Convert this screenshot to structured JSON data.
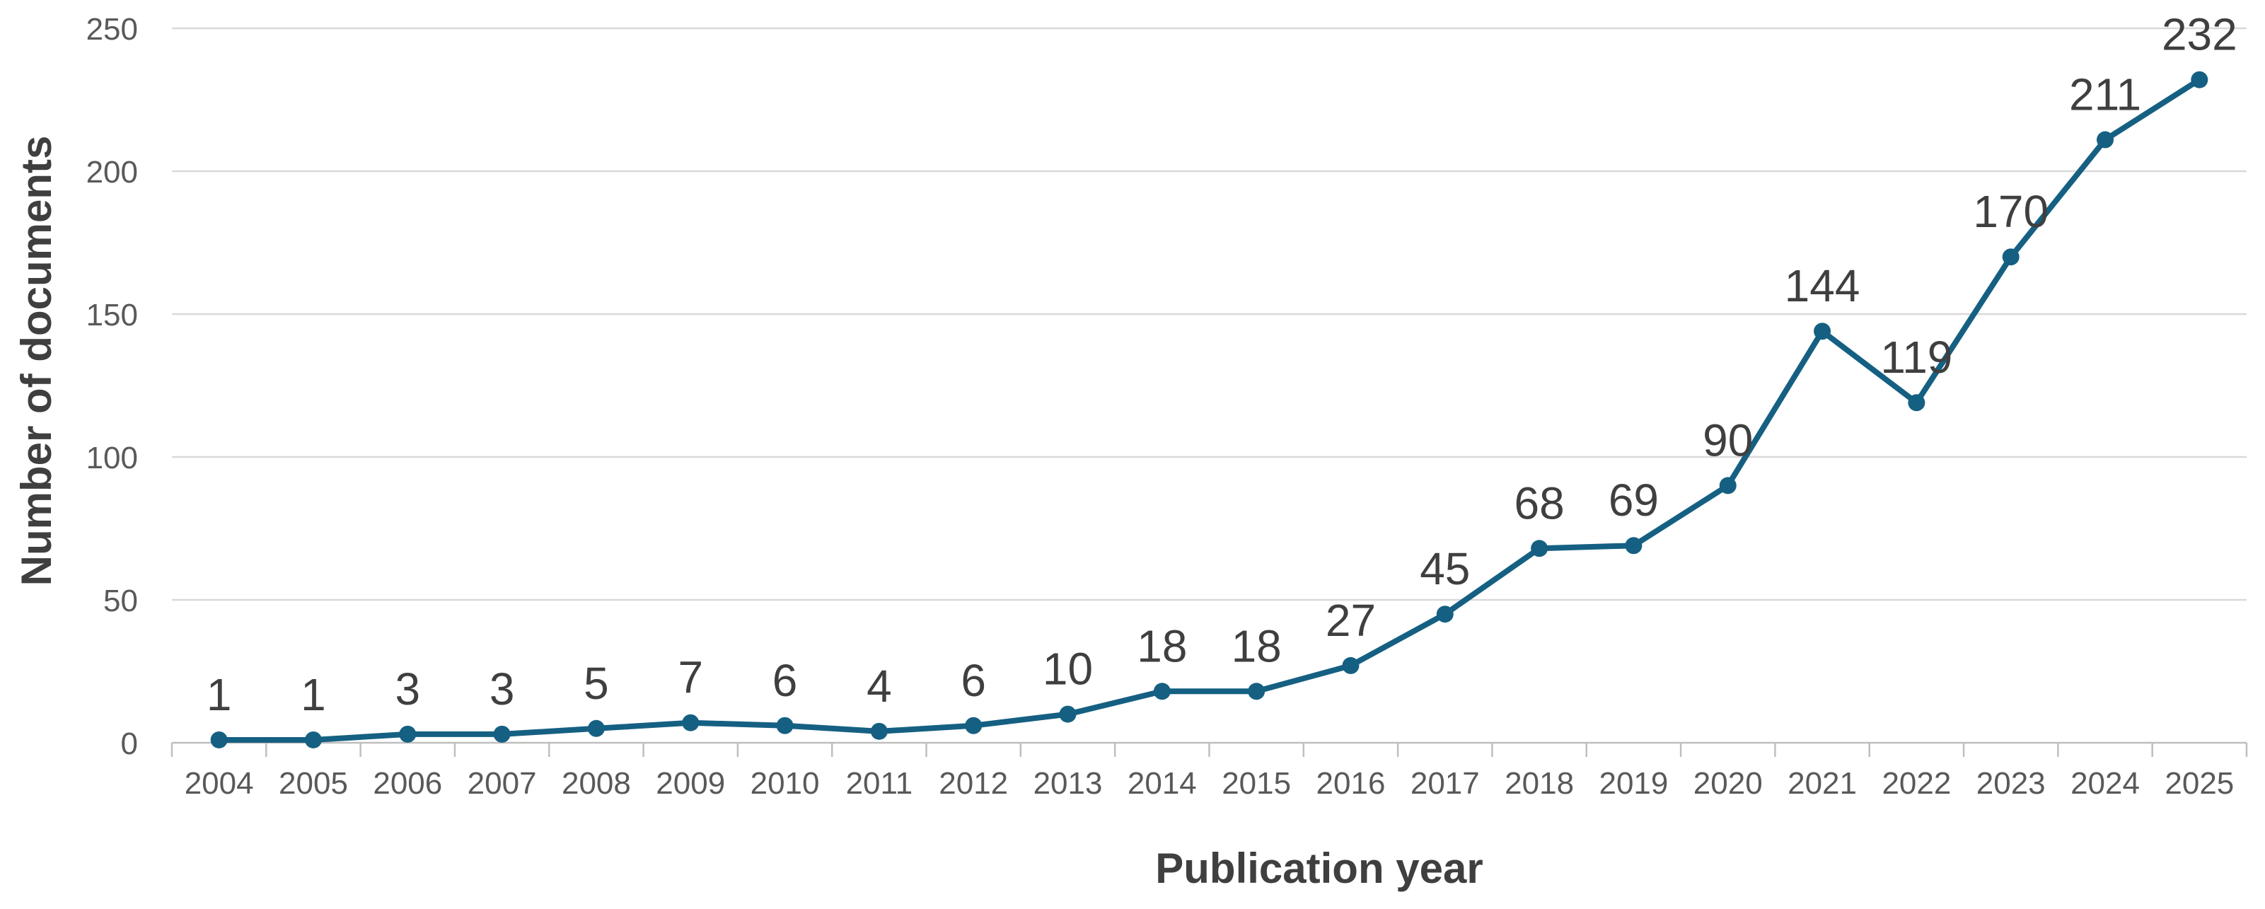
{
  "chart_data": {
    "type": "line",
    "title": "",
    "xlabel": "Publication year",
    "ylabel": "Number of documents",
    "categories": [
      "2004",
      "2005",
      "2006",
      "2007",
      "2008",
      "2009",
      "2010",
      "2011",
      "2012",
      "2013",
      "2014",
      "2015",
      "2016",
      "2017",
      "2018",
      "2019",
      "2020",
      "2021",
      "2022",
      "2023",
      "2024",
      "2025"
    ],
    "values": [
      1,
      1,
      3,
      3,
      5,
      7,
      6,
      4,
      6,
      10,
      18,
      18,
      27,
      45,
      68,
      69,
      90,
      144,
      119,
      170,
      211,
      232
    ],
    "data_labels": [
      "1",
      "1",
      "3",
      "3",
      "5",
      "7",
      "6",
      "4",
      "6",
      "10",
      "18",
      "18",
      "27",
      "45",
      "68",
      "69",
      "90",
      "144",
      "119",
      "170",
      "211",
      "232"
    ],
    "yticks": [
      0,
      50,
      100,
      150,
      200,
      250
    ],
    "ytick_labels": [
      "0",
      "50",
      "100",
      "150",
      "200",
      "250"
    ],
    "ylim": [
      0,
      250
    ],
    "grid": "horizontal-only",
    "legend": "none",
    "marker": "circle",
    "colors": {
      "line": "#156082",
      "marker": "#156082",
      "data_label": "#3F3F3F",
      "tick_label": "#595959",
      "axis_title": "#3F3F3F",
      "gridline": "#D9D9D9",
      "axis_line": "#BFBFBF",
      "background": "#FFFFFF"
    }
  }
}
